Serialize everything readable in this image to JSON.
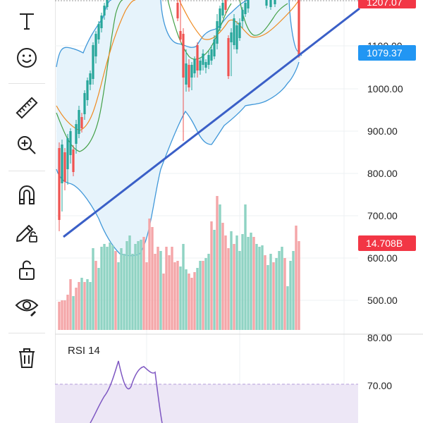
{
  "toolbar": {
    "items": [
      {
        "name": "text-tool",
        "icon": "text-icon"
      },
      {
        "name": "emoji-tool",
        "icon": "smiley-icon"
      },
      {
        "name": "measure-tool",
        "icon": "ruler-icon"
      },
      {
        "name": "zoom-tool",
        "icon": "zoom-in-icon"
      },
      {
        "name": "magnet-tool",
        "icon": "magnet-icon"
      },
      {
        "name": "lock-drawings-tool",
        "icon": "pencil-lock-icon"
      },
      {
        "name": "lock-tool",
        "icon": "unlock-icon"
      },
      {
        "name": "visibility-tool",
        "icon": "eye-icon"
      },
      {
        "name": "delete-tool",
        "icon": "trash-icon"
      }
    ]
  },
  "price_axis": {
    "labels": [
      "1100.00",
      "1000.00",
      "900.00",
      "800.00",
      "700.00",
      "600.00",
      "500.00"
    ],
    "last_price_top": "1207.07",
    "current_price": "1079.37",
    "volume_value": "14.708B"
  },
  "rsi": {
    "title": "RSI 14",
    "labels": [
      "80.00",
      "70.00"
    ]
  },
  "colors": {
    "up": "#26a69a",
    "down": "#ef5350",
    "up_volume": "#8fd3c3",
    "down_volume": "#f4a6a8",
    "trendline": "#3a5fc7",
    "band": "#3f97d9",
    "band_fill": "#e6f3fb",
    "ma_fast": "#43a047",
    "ma_slow": "#ef8a1f",
    "current_badge": "#2196f3",
    "red_badge": "#f23645",
    "rsi_line": "#7e57c2",
    "rsi_fill": "#ede7f6"
  }
}
